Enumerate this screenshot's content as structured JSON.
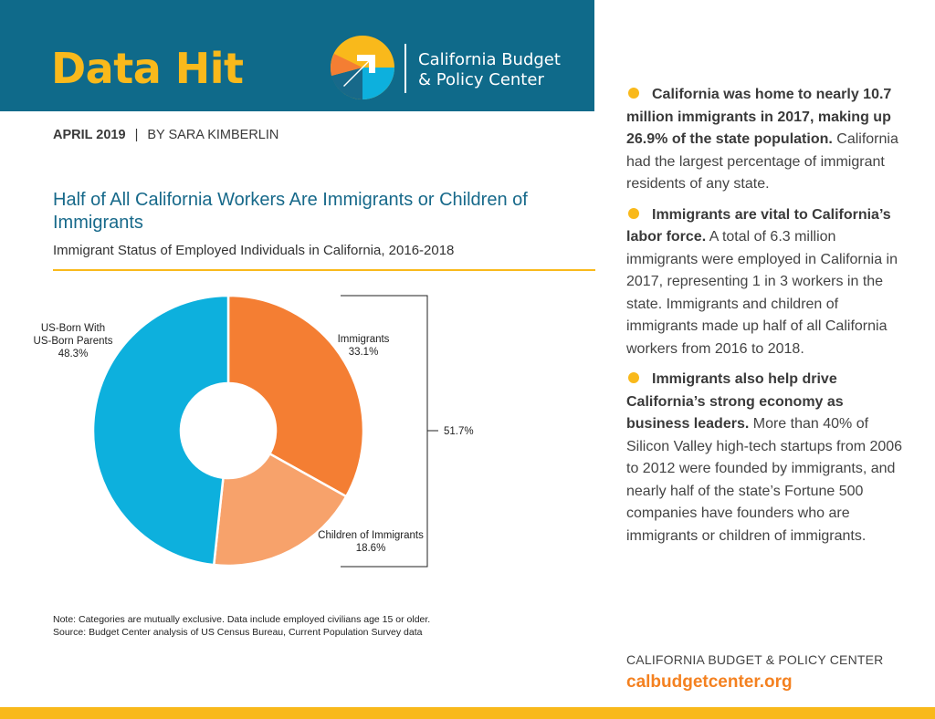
{
  "header": {
    "title": "Data Hit",
    "org_line1": "California Budget",
    "org_line2": "& Policy Center"
  },
  "byline": {
    "date": "APRIL 2019",
    "separator": "|",
    "author": "BY SARA KIMBERLIN"
  },
  "chart_data": {
    "type": "pie",
    "title": "Half of All California Workers Are Immigrants or Children of Immigrants",
    "subtitle": "Immigrant Status of Employed Individuals in California, 2016-2018",
    "categories": [
      "Immigrants",
      "Children of Immigrants",
      "US-Born With US-Born Parents"
    ],
    "values": [
      33.1,
      18.6,
      48.3
    ],
    "value_labels": [
      "33.1%",
      "18.6%",
      "48.3%"
    ],
    "label_lines": [
      [
        "Immigrants",
        "33.1%"
      ],
      [
        "Children of Immigrants",
        "18.6%"
      ],
      [
        "US-Born With",
        "US-Born Parents",
        "48.3%"
      ]
    ],
    "colors": [
      "#f47e33",
      "#f7a26b",
      "#0db0dd"
    ],
    "bracket_label": "51.7%",
    "donut": true,
    "legend": "none"
  },
  "note": {
    "line1": "Note: Categories are mutually exclusive. Data include employed civilians age 15 or older.",
    "line2": "Source: Budget Center analysis of US Census Bureau, Current Population Survey data"
  },
  "facts": [
    {
      "lead": "California was home to nearly 10.7 million immigrants in 2017, making up 26.9% of the state population.",
      "body": " California had the largest percentage of immigrant residents of any state."
    },
    {
      "lead": "Immigrants are vital to California’s labor force.",
      "body": " A total of 6.3 million immigrants were employed in California in 2017, representing 1 in 3 workers in the state. Immigrants and children of immigrants made up half of all California workers from 2016 to 2018."
    },
    {
      "lead": "Immigrants also help drive California’s strong economy as business leaders.",
      "body": " More than 40% of Silicon Valley high-tech startups from 2006 to 2012 were founded by immigrants, and nearly half of the state’s Fortune 500 companies have founders who are immigrants or children of immigrants."
    }
  ],
  "footer": {
    "org": "CALIFORNIA BUDGET & POLICY CENTER",
    "url": "calbudgetcenter.org"
  },
  "colors": {
    "header_bg": "#0f6a8a",
    "accent_yellow": "#f9b91b",
    "accent_orange": "#f48120",
    "title_blue": "#17698a"
  },
  "icons": {
    "logo": "arrow-circle-logo-icon",
    "bullet": "yellow-dot-bullet-icon"
  }
}
